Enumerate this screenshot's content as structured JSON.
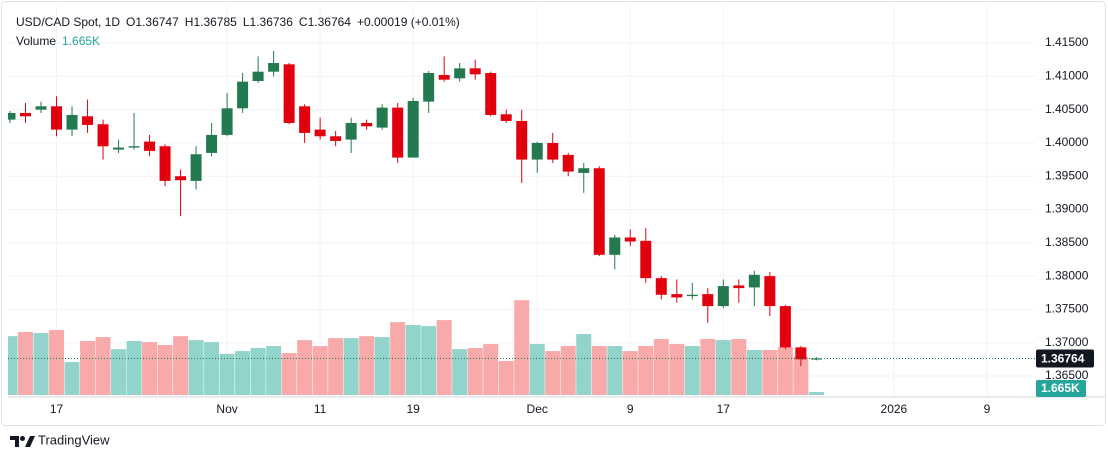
{
  "chart_data": {
    "type": "candlestick",
    "title": "USD/CAD Spot, 1D",
    "ohlc_prefixes": [
      "O",
      "H",
      "L",
      "C"
    ],
    "change_label": "+0.00019 (+0.01%)",
    "volume_title": "Volume",
    "volume_legend": "1.665K",
    "last_volume_label": "1.665K",
    "open": [
      1.4035,
      1.4045,
      1.405,
      1.4055,
      1.402,
      1.404,
      1.4028,
      1.399,
      1.3993,
      1.4002,
      1.3995,
      1.395,
      1.3943,
      1.3985,
      1.4012,
      1.4052,
      1.4093,
      1.4107,
      1.4118,
      1.4055,
      1.402,
      1.401,
      1.4005,
      1.403,
      1.4023,
      1.4053,
      1.3978,
      1.4062,
      1.4102,
      1.4097,
      1.4112,
      1.4105,
      1.4043,
      1.4033,
      1.3975,
      1.4,
      1.3982,
      1.3955,
      1.3962,
      1.3832,
      1.3858,
      1.3853,
      1.3797,
      1.3773,
      1.377,
      1.3773,
      1.3755,
      1.3786,
      1.3783,
      1.38,
      1.3755,
      1.3693,
      1.36747
    ],
    "high": [
      1.4048,
      1.406,
      1.4062,
      1.407,
      1.4055,
      1.4065,
      1.4035,
      1.4005,
      1.4045,
      1.4012,
      1.3998,
      1.396,
      1.3995,
      1.403,
      1.4075,
      1.4105,
      1.413,
      1.4138,
      1.412,
      1.4058,
      1.4038,
      1.4018,
      1.4038,
      1.4035,
      1.4058,
      1.406,
      1.4068,
      1.4108,
      1.413,
      1.412,
      1.4125,
      1.4107,
      1.405,
      1.405,
      1.4002,
      1.4015,
      1.3985,
      1.397,
      1.3965,
      1.3862,
      1.387,
      1.3872,
      1.38,
      1.3795,
      1.379,
      1.3782,
      1.3795,
      1.3795,
      1.3808,
      1.3806,
      1.3757,
      1.3695,
      1.36785
    ],
    "low": [
      1.403,
      1.403,
      1.4045,
      1.401,
      1.401,
      1.4015,
      1.3975,
      1.3985,
      1.399,
      1.398,
      1.3935,
      1.389,
      1.393,
      1.398,
      1.401,
      1.4045,
      1.409,
      1.41,
      1.4028,
      1.4,
      1.4005,
      1.3995,
      1.3985,
      1.402,
      1.402,
      1.397,
      1.3978,
      1.4045,
      1.4092,
      1.4092,
      1.4095,
      1.404,
      1.403,
      1.394,
      1.3955,
      1.397,
      1.395,
      1.3925,
      1.383,
      1.381,
      1.3845,
      1.379,
      1.3765,
      1.376,
      1.3765,
      1.373,
      1.3752,
      1.376,
      1.3755,
      1.374,
      1.369,
      1.3665,
      1.36736
    ],
    "close": [
      1.4045,
      1.404,
      1.4055,
      1.402,
      1.4042,
      1.4027,
      1.3995,
      1.3993,
      1.3995,
      1.3988,
      1.3943,
      1.3944,
      1.3983,
      1.4012,
      1.4052,
      1.4092,
      1.4107,
      1.412,
      1.403,
      1.4015,
      1.401,
      1.4003,
      1.403,
      1.4025,
      1.4053,
      1.3978,
      1.4063,
      1.4105,
      1.4095,
      1.4112,
      1.4103,
      1.4042,
      1.4033,
      1.3975,
      1.4,
      1.3975,
      1.3957,
      1.3962,
      1.3832,
      1.3858,
      1.3852,
      1.3797,
      1.3772,
      1.3768,
      1.3772,
      1.3755,
      1.3785,
      1.3782,
      1.3802,
      1.3755,
      1.3693,
      1.3675,
      1.36764
    ],
    "volume": [
      32.7,
      35.0,
      34.4,
      36.1,
      18.3,
      30.0,
      32.2,
      25.5,
      30.0,
      29.4,
      27.8,
      32.7,
      30.5,
      29.4,
      22.8,
      24.4,
      26.1,
      27.2,
      23.3,
      30.5,
      27.2,
      31.6,
      31.6,
      32.7,
      32.2,
      40.5,
      38.9,
      38.3,
      41.6,
      25.5,
      26.1,
      28.3,
      18.9,
      52.7,
      28.3,
      24.4,
      27.2,
      33.9,
      27.2,
      27.2,
      24.4,
      27.2,
      31.1,
      28.3,
      27.2,
      31.1,
      30.5,
      31.1,
      25.0,
      25.0,
      26.6,
      21.1,
      1.665
    ],
    "up_color": "#237a50",
    "down_color": "#e3000e",
    "volume_up_color": "#92d3cb",
    "volume_down_color": "#f8aaab",
    "last_volume_color": "#26a69a",
    "last_price_color": "#131722",
    "ylim": [
      1.36215,
      1.41996
    ],
    "yticks": [
      {
        "value": 1.415,
        "label": "1.41500"
      },
      {
        "value": 1.41,
        "label": "1.41000"
      },
      {
        "value": 1.405,
        "label": "1.40500"
      },
      {
        "value": 1.4,
        "label": "1.40000"
      },
      {
        "value": 1.395,
        "label": "1.39500"
      },
      {
        "value": 1.39,
        "label": "1.39000"
      },
      {
        "value": 1.385,
        "label": "1.38500"
      },
      {
        "value": 1.38,
        "label": "1.38000"
      },
      {
        "value": 1.375,
        "label": "1.37500"
      },
      {
        "value": 1.37,
        "label": "1.37000"
      },
      {
        "value": 1.365,
        "label": "1.36500"
      }
    ],
    "xlim": [
      0,
      66.1
    ],
    "xticks": [
      {
        "value": 3,
        "label": "17"
      },
      {
        "value": 14,
        "label": "Nov"
      },
      {
        "value": 20,
        "label": "11"
      },
      {
        "value": 26,
        "label": "19"
      },
      {
        "value": 34,
        "label": "Dec"
      },
      {
        "value": 40,
        "label": "9"
      },
      {
        "value": 46,
        "label": "17"
      },
      {
        "value": 57,
        "label": "2026"
      },
      {
        "value": 63,
        "label": "9"
      }
    ],
    "volume_lim": [
      0,
      70
    ],
    "grid": true
  },
  "footer": {
    "brand": "TradingView"
  }
}
